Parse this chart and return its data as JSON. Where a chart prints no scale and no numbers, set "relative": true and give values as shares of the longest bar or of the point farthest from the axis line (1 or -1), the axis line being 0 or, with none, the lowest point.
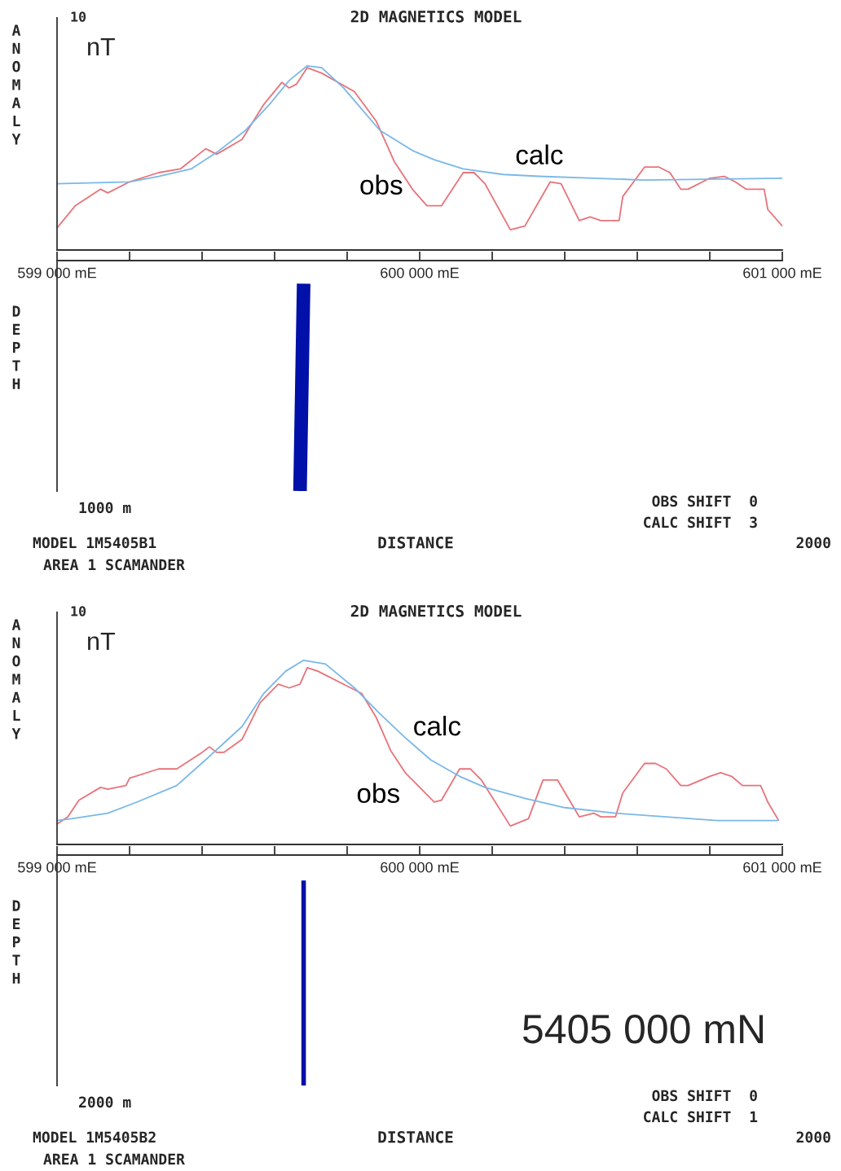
{
  "chart_data": [
    {
      "type": "line",
      "title": "2D MAGNETICS MODEL",
      "ylabel": "ANOMALY",
      "relative": true,
      "tick_labels": false,
      "grid": false,
      "legend": false,
      "annotations": [
        "10",
        "nT"
      ],
      "xlim": [
        599000,
        601000
      ],
      "xticks": [
        {
          "value": 599000,
          "label": null
        },
        {
          "value": 599200,
          "label": null
        },
        {
          "value": 599400,
          "label": null
        },
        {
          "value": 599600,
          "label": null
        },
        {
          "value": 599800,
          "label": null
        },
        {
          "value": 600000,
          "label": null
        },
        {
          "value": 600200,
          "label": null
        },
        {
          "value": 600400,
          "label": null
        },
        {
          "value": 600600,
          "label": null
        },
        {
          "value": 600800,
          "label": null
        },
        {
          "value": 601000,
          "label": null
        }
      ],
      "series": [
        {
          "name": "obs",
          "color": "#e8737a",
          "x": [
            599000,
            599050,
            599120,
            599140,
            599200,
            599280,
            599340,
            599410,
            599440,
            599510,
            599570,
            599620,
            599640,
            599660,
            599690,
            599730,
            599820,
            599880,
            599930,
            599980,
            600020,
            600040,
            600060,
            600120,
            600150,
            600180,
            600250,
            600290,
            600360,
            600390,
            600440,
            600470,
            600500,
            600550,
            600560,
            600620,
            600660,
            600690,
            600720,
            600740,
            600800,
            600840,
            600870,
            600900,
            600950,
            600960,
            601000
          ],
          "values": [
            0.12,
            0.24,
            0.33,
            0.31,
            0.37,
            0.42,
            0.44,
            0.55,
            0.52,
            0.6,
            0.79,
            0.91,
            0.88,
            0.9,
            0.99,
            0.96,
            0.86,
            0.7,
            0.48,
            0.33,
            0.24,
            0.24,
            0.24,
            0.42,
            0.42,
            0.36,
            0.11,
            0.13,
            0.37,
            0.36,
            0.16,
            0.18,
            0.16,
            0.16,
            0.29,
            0.45,
            0.45,
            0.42,
            0.33,
            0.33,
            0.39,
            0.4,
            0.37,
            0.33,
            0.33,
            0.22,
            0.13
          ]
        },
        {
          "name": "calc",
          "color": "#79b8e8",
          "x": [
            599000,
            599200,
            599280,
            599370,
            599440,
            599520,
            599590,
            599640,
            599690,
            599730,
            599790,
            599890,
            599980,
            600040,
            600120,
            600230,
            600330,
            600480,
            600620,
            601000
          ],
          "values": [
            0.36,
            0.37,
            0.4,
            0.44,
            0.53,
            0.65,
            0.8,
            0.92,
            1.0,
            0.99,
            0.88,
            0.65,
            0.54,
            0.49,
            0.44,
            0.41,
            0.4,
            0.39,
            0.38,
            0.39
          ]
        }
      ]
    },
    {
      "type": "line",
      "ylabel": "DEPTH",
      "xlabel": "DISTANCE",
      "relative": true,
      "tick_labels": "x",
      "grid": false,
      "legend": false,
      "annotations": [
        "1000 m",
        "OBS SHIFT  0",
        "CALC SHIFT  3",
        "MODEL 1M5405B1",
        "AREA 1 SCAMANDER",
        "2000"
      ],
      "xlim": [
        599000,
        601000
      ],
      "xticks": [
        {
          "value": 599000,
          "label": "599 000 mE"
        },
        {
          "value": 599200,
          "label": null
        },
        {
          "value": 599400,
          "label": null
        },
        {
          "value": 599600,
          "label": null
        },
        {
          "value": 599800,
          "label": null
        },
        {
          "value": 600000,
          "label": "600 000 mE"
        },
        {
          "value": 600200,
          "label": null
        },
        {
          "value": 600400,
          "label": null
        },
        {
          "value": 600600,
          "label": null
        },
        {
          "value": 600800,
          "label": null
        },
        {
          "value": 601000,
          "label": "601 000 mE"
        }
      ],
      "series": [
        {
          "color": "#0010a8",
          "x": [
            599680,
            599670
          ],
          "values": [
            -0.1,
            -1.0
          ]
        }
      ]
    },
    {
      "type": "line",
      "title": "2D MAGNETICS MODEL",
      "ylabel": "ANOMALY",
      "relative": true,
      "tick_labels": false,
      "grid": false,
      "legend": false,
      "annotations": [
        "10",
        "nT"
      ],
      "xlim": [
        599000,
        601000
      ],
      "xticks": [
        {
          "value": 599000,
          "label": null
        },
        {
          "value": 599200,
          "label": null
        },
        {
          "value": 599400,
          "label": null
        },
        {
          "value": 599600,
          "label": null
        },
        {
          "value": 599800,
          "label": null
        },
        {
          "value": 600000,
          "label": null
        },
        {
          "value": 600200,
          "label": null
        },
        {
          "value": 600400,
          "label": null
        },
        {
          "value": 600600,
          "label": null
        },
        {
          "value": 600800,
          "label": null
        },
        {
          "value": 601000,
          "label": null
        }
      ],
      "series": [
        {
          "name": "obs",
          "color": "#e8737a",
          "x": [
            599000,
            599030,
            599060,
            599120,
            599140,
            599190,
            599200,
            599280,
            599330,
            599400,
            599420,
            599440,
            599460,
            599510,
            599560,
            599610,
            599640,
            599670,
            599690,
            599720,
            599810,
            599840,
            599880,
            599920,
            599960,
            600040,
            600060,
            600110,
            600140,
            600170,
            600250,
            600300,
            600340,
            600380,
            600440,
            600480,
            600500,
            600540,
            600560,
            600620,
            600650,
            600680,
            600720,
            600740,
            600800,
            600830,
            600860,
            600890,
            600940,
            600960,
            600990
          ],
          "values": [
            0.11,
            0.15,
            0.24,
            0.31,
            0.3,
            0.32,
            0.36,
            0.41,
            0.41,
            0.5,
            0.53,
            0.5,
            0.5,
            0.57,
            0.77,
            0.87,
            0.85,
            0.87,
            0.96,
            0.94,
            0.85,
            0.82,
            0.69,
            0.51,
            0.39,
            0.23,
            0.24,
            0.41,
            0.41,
            0.35,
            0.1,
            0.14,
            0.35,
            0.35,
            0.15,
            0.17,
            0.15,
            0.15,
            0.28,
            0.44,
            0.44,
            0.41,
            0.32,
            0.32,
            0.37,
            0.39,
            0.37,
            0.32,
            0.32,
            0.23,
            0.13
          ]
        },
        {
          "name": "calc",
          "color": "#79b8e8",
          "x": [
            599000,
            599040,
            599140,
            599220,
            599330,
            599410,
            599510,
            599570,
            599630,
            599680,
            599740,
            599820,
            599890,
            599960,
            600030,
            600110,
            600180,
            600290,
            600400,
            600540,
            600680,
            600820,
            600990
          ],
          "values": [
            0.13,
            0.14,
            0.17,
            0.23,
            0.32,
            0.46,
            0.64,
            0.82,
            0.94,
            1.0,
            0.98,
            0.85,
            0.71,
            0.58,
            0.46,
            0.37,
            0.31,
            0.25,
            0.2,
            0.17,
            0.15,
            0.13,
            0.13
          ]
        }
      ]
    },
    {
      "type": "line",
      "ylabel": "DEPTH",
      "xlabel": "DISTANCE",
      "relative": true,
      "tick_labels": "x",
      "grid": false,
      "legend": false,
      "annotations": [
        "2000 m",
        "OBS SHIFT  0",
        "CALC SHIFT  1",
        "MODEL 1M5405B2",
        "AREA 1 SCAMANDER",
        "2000",
        "5405 000 mN"
      ],
      "xlim": [
        599000,
        601000
      ],
      "xticks": [
        {
          "value": 599000,
          "label": "599 000 mE"
        },
        {
          "value": 599200,
          "label": null
        },
        {
          "value": 599400,
          "label": null
        },
        {
          "value": 599600,
          "label": null
        },
        {
          "value": 599800,
          "label": null
        },
        {
          "value": 600000,
          "label": "600 000 mE"
        },
        {
          "value": 600200,
          "label": null
        },
        {
          "value": 600400,
          "label": null
        },
        {
          "value": 600600,
          "label": null
        },
        {
          "value": 600800,
          "label": null
        },
        {
          "value": 601000,
          "label": "601 000 mE"
        }
      ],
      "series": [
        {
          "color": "#0010a8",
          "x": [
            599680,
            599680
          ],
          "values": [
            -0.11,
            -1.0
          ]
        }
      ]
    }
  ]
}
